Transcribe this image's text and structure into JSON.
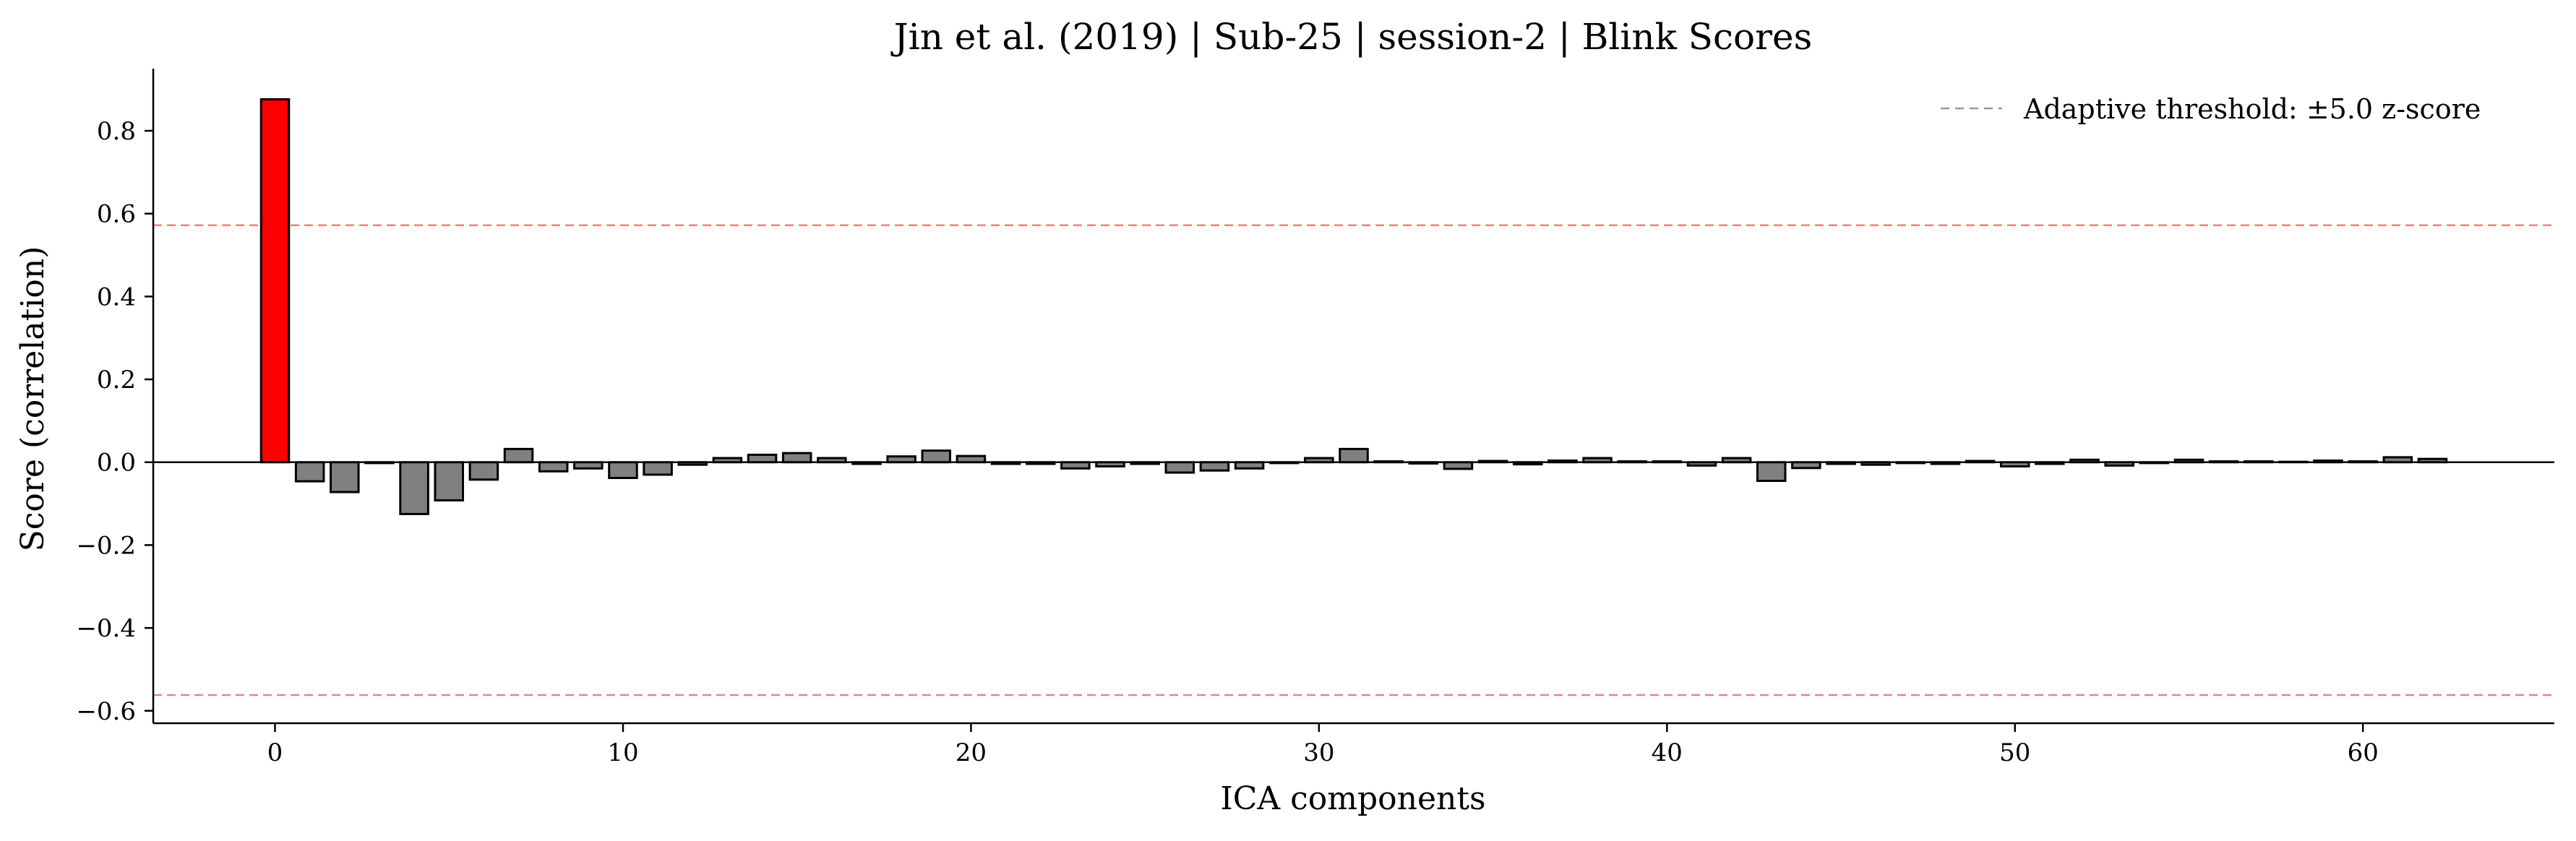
{
  "chart_data": {
    "type": "bar",
    "title": "Jin et al. (2019) | Sub-25 | session-2 | Blink Scores",
    "xlabel": "ICA components",
    "ylabel": "Score (correlation)",
    "xlim": [
      -3.5,
      65.5
    ],
    "ylim": [
      -0.63,
      0.95
    ],
    "xticks": [
      0,
      10,
      20,
      30,
      40,
      50,
      60
    ],
    "xtick_labels": [
      "0",
      "10",
      "20",
      "30",
      "40",
      "50",
      "60"
    ],
    "yticks": [
      -0.6,
      -0.4,
      -0.2,
      0.0,
      0.2,
      0.4,
      0.6,
      0.8
    ],
    "ytick_labels": [
      "−0.6",
      "−0.4",
      "−0.2",
      "0.0",
      "0.2",
      "0.4",
      "0.6",
      "0.8"
    ],
    "grid": false,
    "legend": {
      "placement": "top-right",
      "entries": [
        {
          "label": "Adaptive threshold: ±5.0 z-score",
          "style": "dashed",
          "color": "#999999"
        }
      ]
    },
    "thresholds": [
      0.572,
      -0.562
    ],
    "threshold_color": "#f08080",
    "bar_color": "#808080",
    "highlight_color": "#ff0000",
    "highlighted_components": [
      0
    ],
    "categories": [
      0,
      1,
      2,
      3,
      4,
      5,
      6,
      7,
      8,
      9,
      10,
      11,
      12,
      13,
      14,
      15,
      16,
      17,
      18,
      19,
      20,
      21,
      22,
      23,
      24,
      25,
      26,
      27,
      28,
      29,
      30,
      31,
      32,
      33,
      34,
      35,
      36,
      37,
      38,
      39,
      40,
      41,
      42,
      43,
      44,
      45,
      46,
      47,
      48,
      49,
      50,
      51,
      52,
      53,
      54,
      55,
      56,
      57,
      58,
      59,
      60,
      61,
      62
    ],
    "values": [
      0.876,
      -0.046,
      -0.072,
      -0.002,
      -0.125,
      -0.092,
      -0.042,
      0.032,
      -0.022,
      -0.015,
      -0.038,
      -0.03,
      -0.006,
      0.01,
      0.018,
      0.022,
      0.01,
      -0.004,
      0.014,
      0.028,
      0.015,
      -0.004,
      -0.004,
      -0.015,
      -0.01,
      -0.004,
      -0.025,
      -0.02,
      -0.015,
      -0.002,
      0.01,
      0.032,
      0.002,
      -0.003,
      -0.016,
      0.003,
      -0.005,
      0.004,
      0.01,
      0.002,
      0.002,
      -0.008,
      0.01,
      -0.045,
      -0.014,
      -0.004,
      -0.006,
      -0.002,
      -0.004,
      0.003,
      -0.01,
      -0.004,
      0.006,
      -0.008,
      -0.002,
      0.006,
      0.002,
      0.002,
      0.001,
      0.004,
      0.002,
      0.012,
      0.008
    ]
  }
}
